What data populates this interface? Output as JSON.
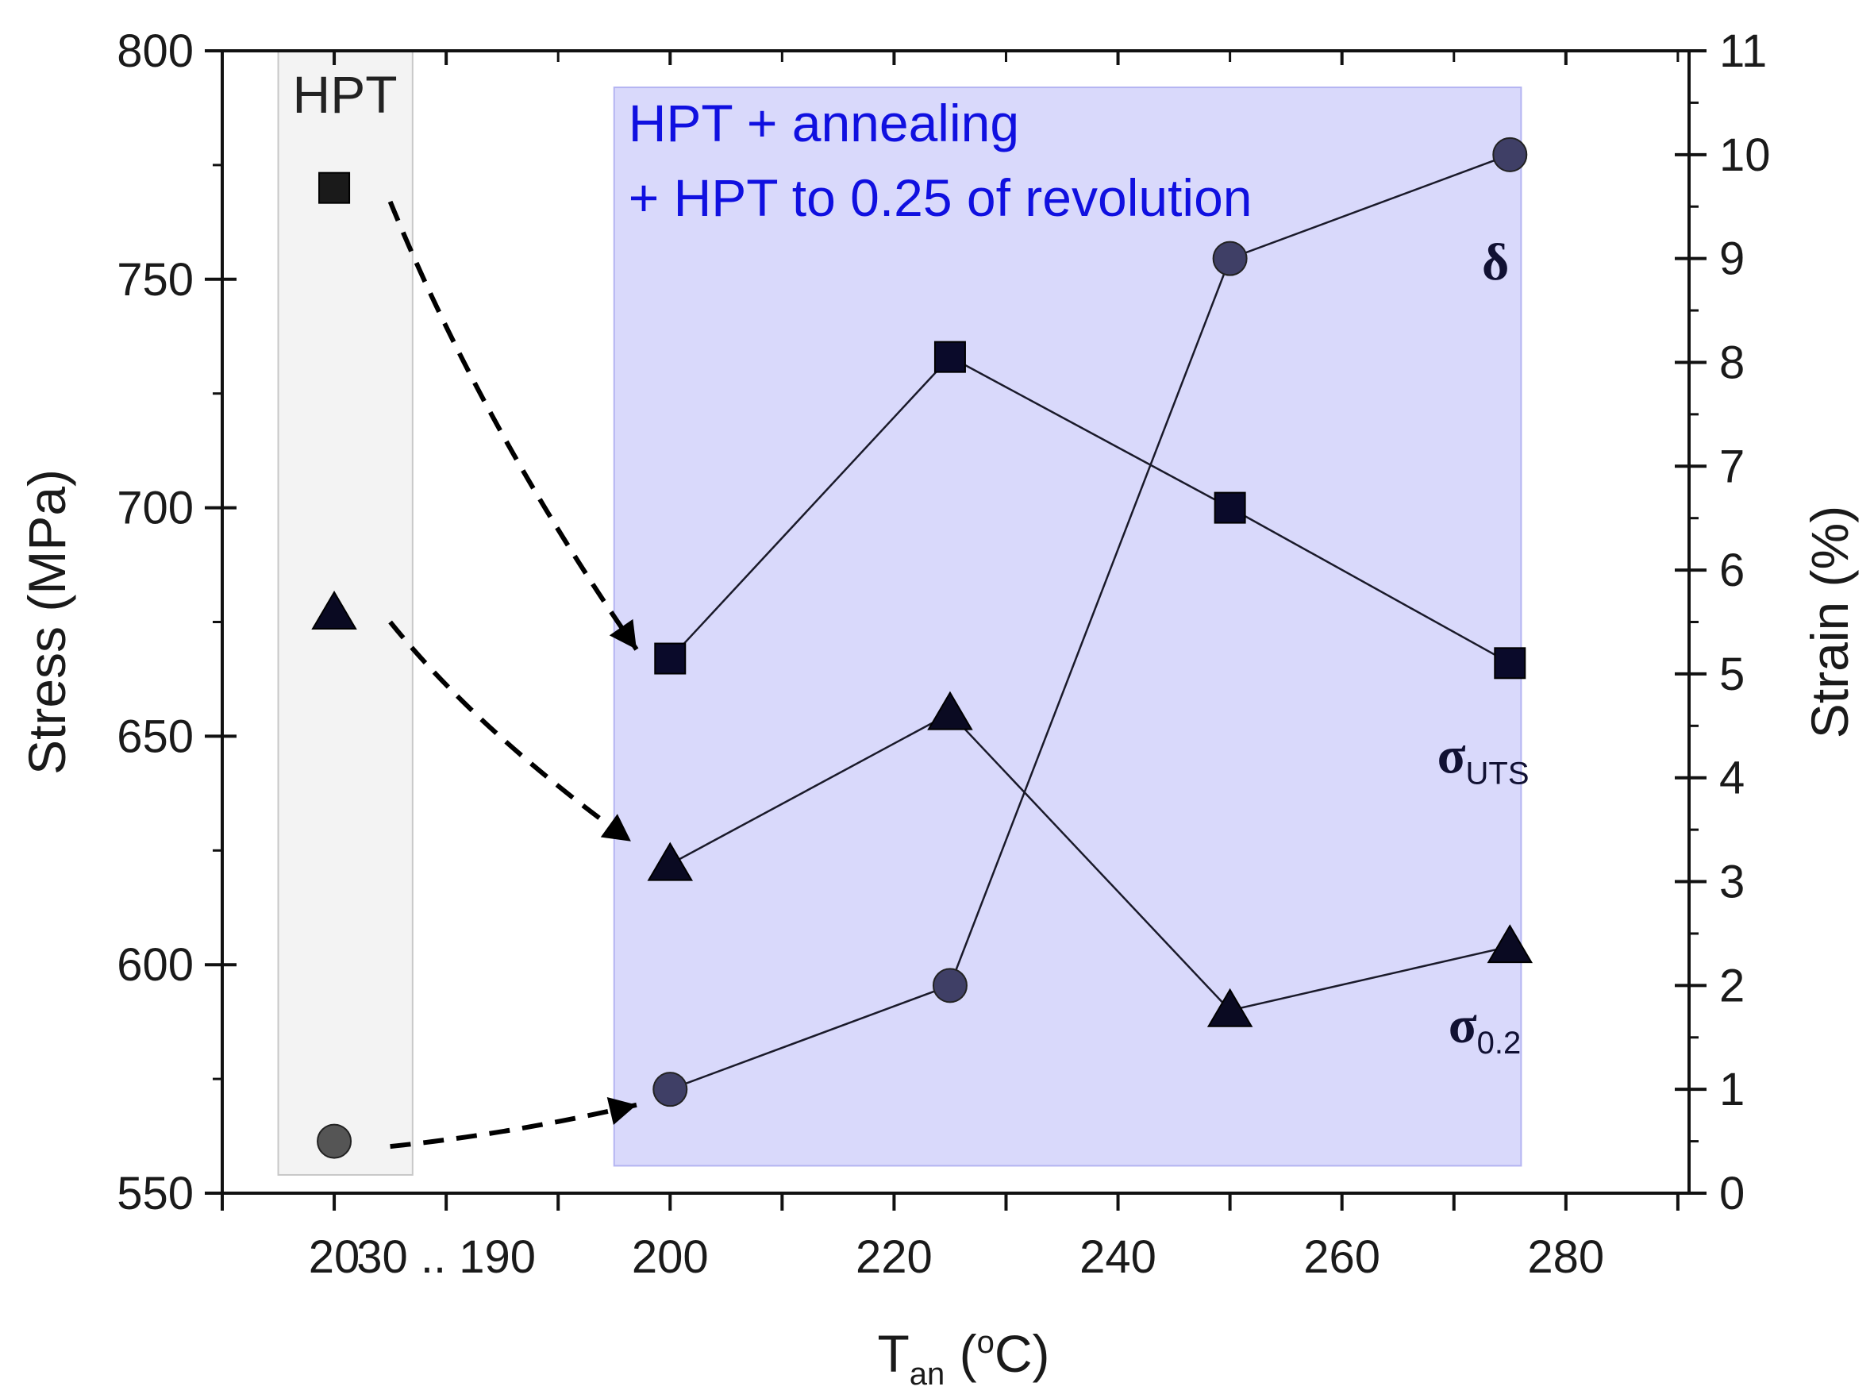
{
  "chart_data": {
    "type": "scatter",
    "title": "",
    "xlabel": {
      "main": "T",
      "sub": "an",
      "rest": " (",
      "sup": "o",
      "end": "C)"
    },
    "ylabel_left": "Stress (MPa)",
    "ylabel_right": "Strain (%)",
    "x_ticks": [
      {
        "pos": 20,
        "label": "20"
      },
      {
        "pos": 30,
        "label": "30 .. 190"
      },
      {
        "pos": 50,
        "label": "200"
      },
      {
        "pos": 70,
        "label": "220"
      },
      {
        "pos": 90,
        "label": "240"
      },
      {
        "pos": 110,
        "label": "260"
      },
      {
        "pos": 130,
        "label": "280"
      }
    ],
    "x_minor_ticks": [
      10,
      40,
      60,
      80,
      100,
      120,
      140
    ],
    "xlim": [
      10,
      141
    ],
    "ylim_left": [
      550,
      800
    ],
    "yticks_left": [
      "550",
      "600",
      "650",
      "700",
      "750",
      "800"
    ],
    "ylim_right": [
      0,
      11
    ],
    "yticks_right": [
      "0",
      "1",
      "2",
      "3",
      "4",
      "5",
      "6",
      "7",
      "8",
      "9",
      "10",
      "11"
    ],
    "regions": [
      {
        "name": "hpt",
        "label": "HPT",
        "x": [
          15,
          27
        ],
        "y": [
          554,
          800
        ]
      },
      {
        "name": "annealing",
        "label_line1": "HPT + annealing",
        "label_line2": "+ HPT to 0.25 of revolution",
        "x": [
          45,
          126
        ],
        "y": [
          556,
          792
        ]
      }
    ],
    "series": [
      {
        "name": "sigma_UTS",
        "symbol": "σ",
        "subscript": "UTS",
        "axis": "left",
        "marker": "square",
        "hpt_point": {
          "x": 20,
          "y": 770
        },
        "x": [
          50,
          75,
          100,
          125
        ],
        "values": [
          667,
          733,
          700,
          666
        ]
      },
      {
        "name": "sigma_0.2",
        "symbol": "σ",
        "subscript": "0.2",
        "axis": "left",
        "marker": "triangle",
        "hpt_point": {
          "x": 20,
          "y": 677
        },
        "x": [
          50,
          75,
          100,
          125
        ],
        "values": [
          622,
          655,
          590,
          604
        ]
      },
      {
        "name": "delta",
        "symbol": "δ",
        "subscript": "",
        "axis": "right",
        "marker": "circle",
        "hpt_point": {
          "x": 20,
          "y": 0.5
        },
        "x": [
          50,
          75,
          100,
          125
        ],
        "values": [
          1.0,
          2.0,
          9.0,
          10.0
        ]
      }
    ],
    "arrows": [
      {
        "from": {
          "x": 25,
          "y": 767,
          "axis": "left"
        },
        "to": {
          "x": 47,
          "y": 669,
          "axis": "left"
        }
      },
      {
        "from": {
          "x": 25,
          "y": 675,
          "axis": "left"
        },
        "to": {
          "x": 46.5,
          "y": 627,
          "axis": "left"
        }
      },
      {
        "from": {
          "x": 25,
          "y": 0.45,
          "axis": "right"
        },
        "to": {
          "x": 47,
          "y": 0.85,
          "axis": "right"
        }
      }
    ],
    "colors": {
      "hpt_box_fill": "#f3f3f3",
      "hpt_box_stroke": "#c8c8c8",
      "annealing_box_fill": "#d9d9fb",
      "annealing_box_stroke": "#b4b4f2",
      "square_hpt": "#1a1a1a",
      "square": "#0a0a2a",
      "triangle": "#0a0a22",
      "circle_hpt": "#555555",
      "circle": "#3f3f66",
      "line": "#1a1a2a",
      "axis": "#111111"
    }
  }
}
